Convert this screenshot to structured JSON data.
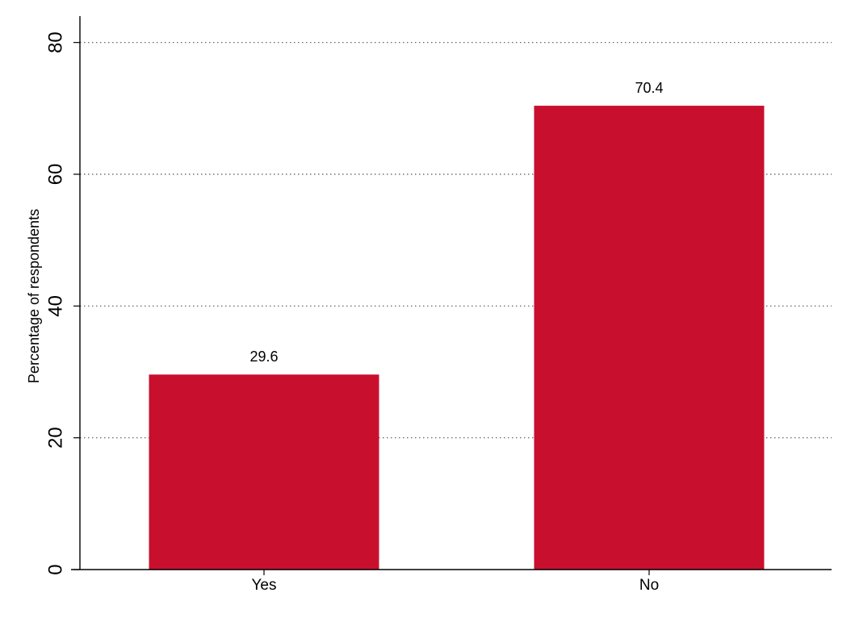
{
  "chart_data": {
    "type": "bar",
    "y_label": "Percentage of respondents",
    "categories": [
      "Yes",
      "No"
    ],
    "values": [
      29.6,
      70.4
    ],
    "color": "#c8102e",
    "ylim": [
      0,
      84
    ],
    "yticks": [
      0,
      20,
      40,
      60,
      80
    ],
    "grid": true
  }
}
